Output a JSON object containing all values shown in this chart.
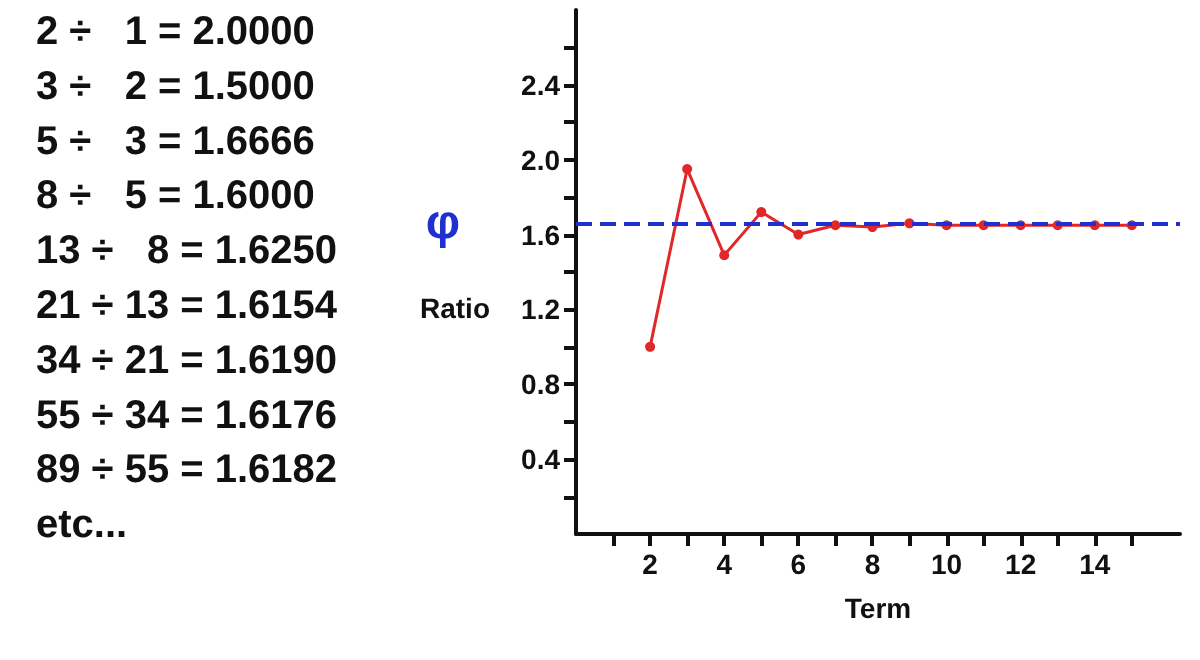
{
  "chart_data": {
    "type": "line",
    "xlabel": "Term",
    "ylabel": "Ratio",
    "x": [
      2,
      3,
      4,
      5,
      6,
      7,
      8,
      9,
      10,
      11,
      12,
      13,
      14,
      15
    ],
    "series": [
      {
        "color": "#e02828",
        "values": [
          1.0,
          1.95,
          1.49,
          1.72,
          1.6,
          1.65,
          1.64,
          1.66,
          1.65,
          1.65,
          1.65,
          1.65,
          1.65,
          1.65
        ]
      }
    ],
    "xlim": [
      0,
      16.3
    ],
    "ylim": [
      0,
      2.8
    ],
    "xticks": [
      {
        "value": 1,
        "label": null
      },
      2,
      {
        "value": 3,
        "label": null
      },
      4,
      {
        "value": 5,
        "label": null
      },
      6,
      {
        "value": 7,
        "label": null
      },
      8,
      {
        "value": 9,
        "label": null
      },
      10,
      {
        "value": 11,
        "label": null
      },
      12,
      {
        "value": 13,
        "label": null
      },
      14,
      {
        "value": 15,
        "label": null
      }
    ],
    "yticks": [
      {
        "value": 0.2,
        "label": null
      },
      0.4,
      {
        "value": 0.6,
        "label": null
      },
      0.8,
      {
        "value": 1.0,
        "label": null
      },
      1.2,
      {
        "value": 1.4,
        "label": null
      },
      1.6,
      {
        "value": 1.8,
        "label": null
      },
      {
        "value": 2.0,
        "label": "2.0"
      },
      {
        "value": 2.2,
        "label": null
      },
      2.4,
      {
        "value": 2.6,
        "label": null
      }
    ],
    "ref_lines": [
      {
        "axis": "y",
        "value": 1.66,
        "label": "φ",
        "color": "#1f2fd0",
        "line_style": "dashed"
      }
    ],
    "marker": "circle",
    "line_style": "solid",
    "grid": false,
    "annotations": [
      "2 ÷   1 = 2.0000",
      "3 ÷   2 = 1.5000",
      "5 ÷   3 = 1.6666",
      "8 ÷   5 = 1.6000",
      "13 ÷   8 = 1.6250",
      "21 ÷ 13 = 1.6154",
      "34 ÷ 21 = 1.6190",
      "55 ÷ 34 = 1.6176",
      "89 ÷ 55 = 1.6182",
      "etc..."
    ]
  }
}
